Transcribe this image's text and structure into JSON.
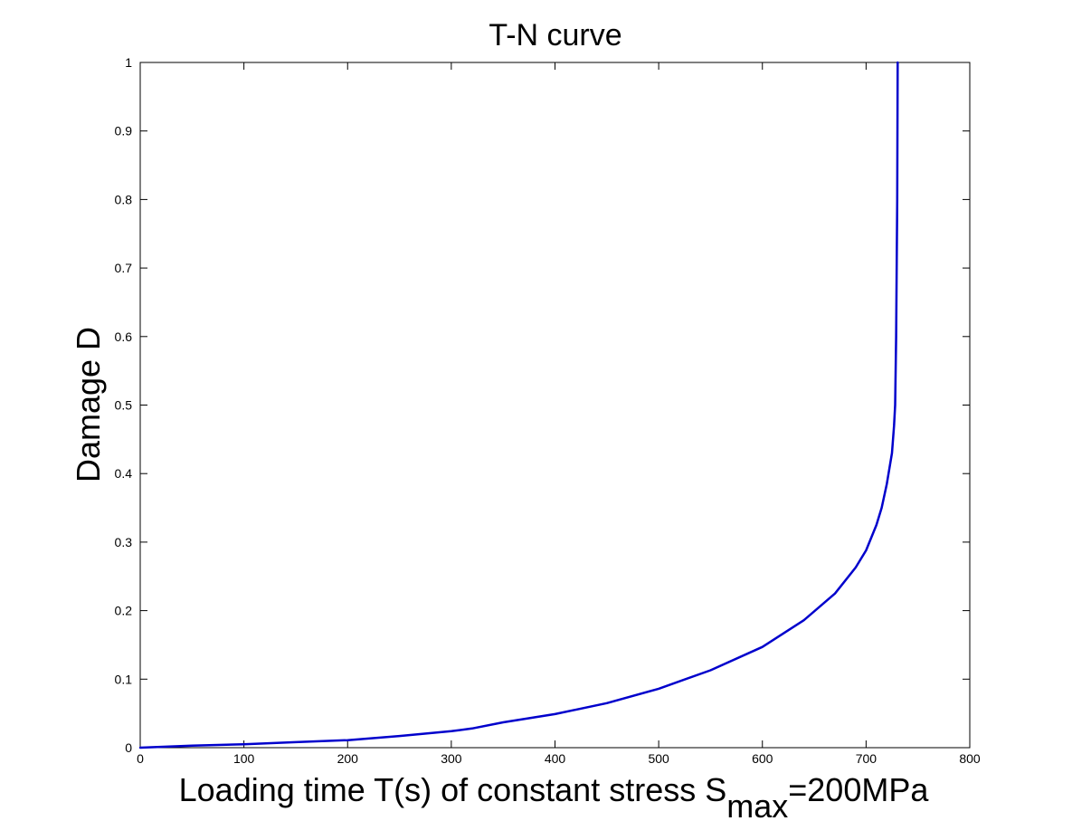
{
  "chart_data": {
    "type": "line",
    "title": "T-N curve",
    "xlabel": {
      "main": "Loading time T(s) of constant stress S",
      "subscript": "max",
      "suffix": "=200MPa"
    },
    "ylabel": "Damage D",
    "xlim": [
      0,
      800
    ],
    "ylim": [
      0,
      1
    ],
    "xticks": [
      0,
      100,
      200,
      300,
      400,
      500,
      600,
      700,
      800
    ],
    "xtick_labels": [
      "0",
      "100",
      "200",
      "300",
      "400",
      "500",
      "600",
      "700",
      "800"
    ],
    "yticks": [
      0,
      0.1,
      0.2,
      0.3,
      0.4,
      0.5,
      0.6,
      0.7,
      0.8,
      0.9,
      1
    ],
    "ytick_labels": [
      "0",
      "0.1",
      "0.2",
      "0.3",
      "0.4",
      "0.5",
      "0.6",
      "0.7",
      "0.8",
      "0.9",
      "1"
    ],
    "grid": false,
    "series": [
      {
        "color": "#0000cc",
        "x": [
          0,
          50,
          100,
          150,
          200,
          250,
          300,
          320,
          350,
          400,
          450,
          500,
          550,
          600,
          640,
          670,
          690,
          700,
          710,
          715,
          720,
          725,
          727,
          728,
          729,
          730,
          730.5
        ],
        "y": [
          0,
          0.003,
          0.005,
          0.008,
          0.011,
          0.017,
          0.024,
          0.028,
          0.037,
          0.049,
          0.065,
          0.086,
          0.113,
          0.147,
          0.186,
          0.225,
          0.263,
          0.288,
          0.325,
          0.35,
          0.385,
          0.43,
          0.47,
          0.5,
          0.6,
          0.8,
          1.0
        ]
      }
    ]
  }
}
